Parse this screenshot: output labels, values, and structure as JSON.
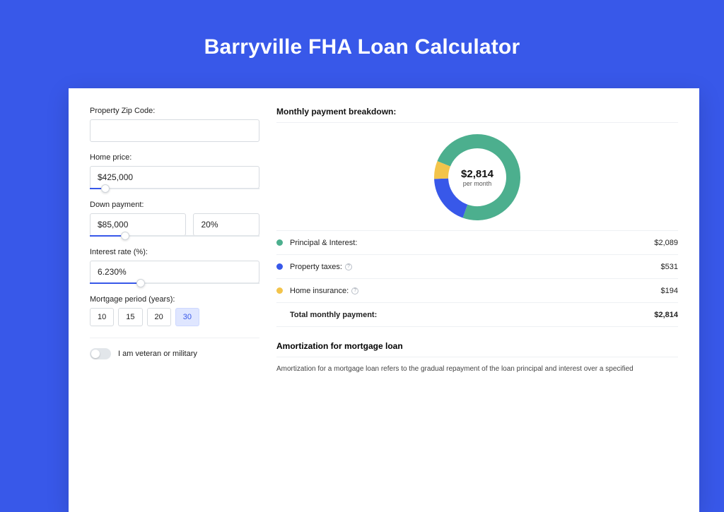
{
  "page": {
    "title": "Barryville FHA Loan Calculator",
    "background_color": "#3858e9"
  },
  "form": {
    "zip": {
      "label": "Property Zip Code:",
      "value": ""
    },
    "home_price": {
      "label": "Home price:",
      "value": "$425,000",
      "slider_pct": 9
    },
    "down_payment": {
      "label": "Down payment:",
      "value": "$85,000",
      "pct": "20%",
      "slider_pct": 21
    },
    "interest_rate": {
      "label": "Interest rate (%):",
      "value": "6.230%",
      "slider_pct": 30
    },
    "mortgage_period": {
      "label": "Mortgage period (years):",
      "options": [
        "10",
        "15",
        "20",
        "30"
      ],
      "selected_index": 3
    },
    "veteran_toggle": {
      "label": "I am veteran or military",
      "on": false
    }
  },
  "breakdown": {
    "title": "Monthly payment breakdown:",
    "donut": {
      "amount": "$2,814",
      "sub": "per month",
      "segments": [
        {
          "key": "principal_interest",
          "value": 2089,
          "color": "#4caf8e",
          "pct": 74.2
        },
        {
          "key": "property_taxes",
          "value": 531,
          "color": "#3858e9",
          "pct": 18.9
        },
        {
          "key": "home_insurance",
          "value": 194,
          "color": "#f3c44b",
          "pct": 6.9
        }
      ],
      "ring_width": 20
    },
    "rows": [
      {
        "dot": "#4caf8e",
        "label": "Principal & Interest:",
        "info": false,
        "value": "$2,089"
      },
      {
        "dot": "#3858e9",
        "label": "Property taxes:",
        "info": true,
        "value": "$531"
      },
      {
        "dot": "#f3c44b",
        "label": "Home insurance:",
        "info": true,
        "value": "$194"
      }
    ],
    "total": {
      "label": "Total monthly payment:",
      "value": "$2,814"
    }
  },
  "amortization": {
    "title": "Amortization for mortgage loan",
    "text": "Amortization for a mortgage loan refers to the gradual repayment of the loan principal and interest over a specified"
  }
}
